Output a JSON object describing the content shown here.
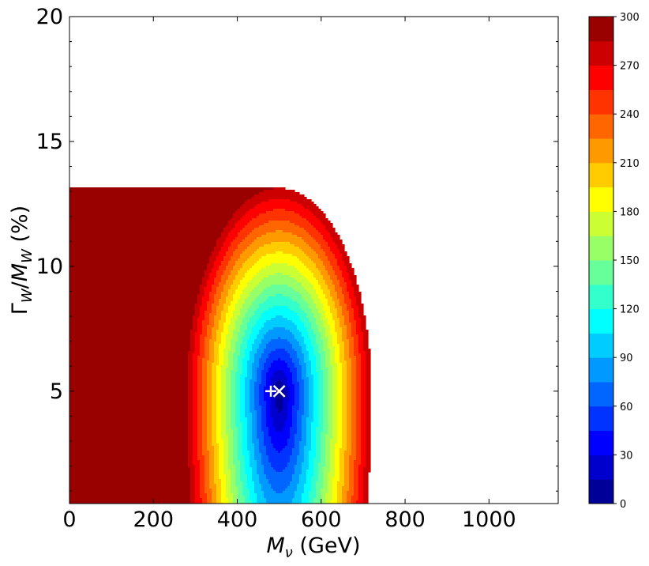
{
  "chart_data": {
    "type": "heatmap",
    "subtype": "filled-contour",
    "colormap": "jet",
    "xlabel": {
      "var": "M",
      "sub": "ν",
      "unit": " (GeV)"
    },
    "ylabel": {
      "Gamma": "Γ",
      "sub1": "W",
      "slash": "/",
      "M": "M",
      "sub2": "W",
      "unit": " (%)"
    },
    "xlim": [
      0,
      1165
    ],
    "ylim": [
      0.5,
      20
    ],
    "x_ticks": [
      0,
      200,
      400,
      600,
      800,
      1000
    ],
    "x_tick_labels": [
      "0",
      "200",
      "400",
      "600",
      "800",
      "1000"
    ],
    "y_ticks": [
      5,
      10,
      15,
      20
    ],
    "y_tick_labels": [
      "5",
      "10",
      "15",
      "20"
    ],
    "grid": false,
    "colorbar": {
      "range": [
        0,
        300
      ],
      "levels": [
        0,
        15,
        30,
        45,
        60,
        75,
        90,
        105,
        120,
        135,
        150,
        165,
        180,
        195,
        210,
        225,
        240,
        255,
        270,
        285,
        300
      ],
      "tick_values": [
        0,
        30,
        60,
        90,
        120,
        150,
        180,
        210,
        240,
        270,
        300
      ],
      "tick_labels": [
        "0",
        "30",
        "60",
        "90",
        "120",
        "150",
        "180",
        "210",
        "240",
        "270",
        "300"
      ]
    },
    "minimum_value": 0,
    "minimum_location": {
      "x": 500,
      "y": 5
    },
    "field_model": {
      "x_min": 500,
      "y_min": 5,
      "sx": 0.25,
      "sy_low": 0.08,
      "sy_high": 0.022,
      "x_curve": 0.0012,
      "slope": 0.0018,
      "slope_pivot": 900,
      "corner_x0": 980,
      "corner_y0": 2.5,
      "corner_amp": 1.3
    },
    "markers": [
      {
        "name": "plus",
        "symbol": "+",
        "x": 480,
        "y": 5,
        "color": "#ffffff"
      },
      {
        "name": "cross",
        "symbol": "×",
        "x": 500,
        "y": 5,
        "color": "#ffffff"
      }
    ]
  }
}
